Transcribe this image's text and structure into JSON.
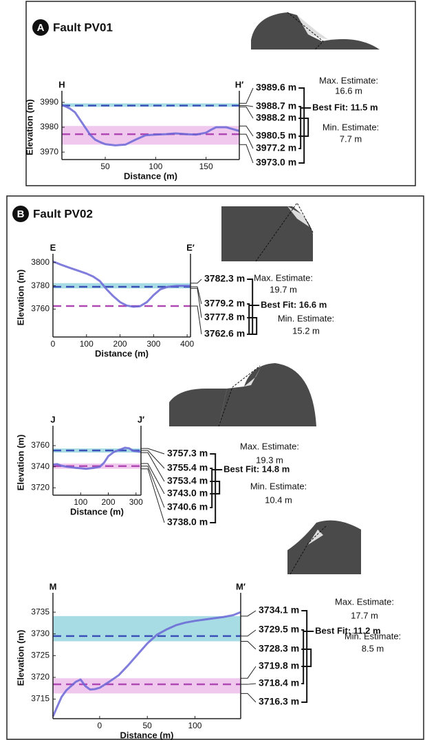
{
  "panels": [
    {
      "letter": "A",
      "title": "Fault PV01"
    },
    {
      "letter": "B",
      "title": "Fault PV02"
    }
  ],
  "chart_data": [
    {
      "type": "line",
      "section": [
        "H",
        "H′"
      ],
      "x_label": "Distance (m)",
      "y_label": "Elevation (m)",
      "color": "#6a66d6",
      "x": [
        7,
        10,
        15,
        20,
        25,
        30,
        35,
        40,
        45,
        50,
        60,
        70,
        80,
        90,
        100,
        110,
        120,
        130,
        140,
        150,
        155,
        160,
        170,
        177,
        183
      ],
      "values": [
        3989,
        3988.5,
        3987.5,
        3986,
        3983,
        3980,
        3977,
        3975,
        3974,
        3973.2,
        3972.7,
        3973,
        3975,
        3976.8,
        3977,
        3977.2,
        3977.5,
        3977.2,
        3977,
        3977.8,
        3979,
        3980,
        3980,
        3979.2,
        3978.5
      ],
      "xlim": [
        7,
        183
      ],
      "xticks": [
        50,
        100,
        150
      ],
      "ylim": [
        3967,
        3993
      ],
      "yticks": [
        3970,
        3980,
        3990
      ],
      "upper_levels": [
        {
          "value": 3989.6,
          "label": "3989.6 m"
        },
        {
          "value": 3988.7,
          "label": "3988.7 m"
        },
        {
          "value": 3988.2,
          "label": "3988.2 m"
        }
      ],
      "lower_levels": [
        {
          "value": 3980.5,
          "label": "3980.5 m"
        },
        {
          "value": 3977.2,
          "label": "3977.2 m"
        },
        {
          "value": 3973.0,
          "label": "3973.0 m"
        }
      ],
      "estimates": {
        "max": [
          "Max. Estimate:",
          "16.6 m"
        ],
        "best": "Best Fit: 11.5 m",
        "min": [
          "Min. Estimate:",
          "7.7 m"
        ]
      }
    },
    {
      "type": "line",
      "section": [
        "E",
        "E′"
      ],
      "x_label": "Distance (m)",
      "y_label": "Elevation (m)",
      "color": "#6a66d6",
      "x": [
        0,
        25,
        50,
        75,
        100,
        120,
        140,
        160,
        180,
        200,
        220,
        240,
        260,
        280,
        300,
        320,
        340,
        370,
        410
      ],
      "values": [
        3801,
        3798,
        3795.5,
        3793,
        3790.5,
        3788,
        3784,
        3777,
        3771,
        3766,
        3763,
        3762,
        3762.5,
        3766,
        3772,
        3777,
        3779,
        3780,
        3780
      ],
      "xlim": [
        0,
        410
      ],
      "xticks": [
        0,
        100,
        200,
        300,
        400
      ],
      "ylim": [
        3736,
        3804
      ],
      "yticks": [
        3760,
        3780,
        3800
      ],
      "upper_levels": [
        {
          "value": 3782.3,
          "label": "3782.3 m"
        },
        {
          "value": 3779.2,
          "label": "3779.2 m"
        },
        {
          "value": 3777.8,
          "label": "3777.8 m"
        }
      ],
      "lower_levels": [
        {
          "value": 3762.6,
          "label": "3762.6 m"
        }
      ],
      "estimates": {
        "max": [
          "Max. Estimate:",
          "19.7 m"
        ],
        "best": "Best Fit: 16.6 m",
        "min": [
          "Min. Estimate:",
          "15.2 m"
        ]
      }
    },
    {
      "type": "line",
      "section": [
        "J",
        "J′"
      ],
      "x_label": "Distance (m)",
      "y_label": "Elevation (m)",
      "color": "#6a66d6",
      "x": [
        0,
        15,
        30,
        50,
        80,
        100,
        120,
        150,
        170,
        185,
        200,
        220,
        240,
        260,
        275,
        290,
        305,
        318
      ],
      "values": [
        3742,
        3742.5,
        3741,
        3740,
        3739,
        3738.5,
        3738,
        3739,
        3740,
        3744,
        3750,
        3754,
        3756,
        3758,
        3757.5,
        3755,
        3754.5,
        3754
      ],
      "xlim": [
        0,
        318
      ],
      "xticks": [
        100,
        200,
        300
      ],
      "ylim": [
        3713,
        3775
      ],
      "yticks": [
        3720,
        3740,
        3760
      ],
      "upper_levels": [
        {
          "value": 3757.3,
          "label": "3757.3 m"
        },
        {
          "value": 3755.4,
          "label": "3755.4 m"
        },
        {
          "value": 3753.4,
          "label": "3753.4 m"
        }
      ],
      "lower_levels": [
        {
          "value": 3743.0,
          "label": "3743.0 m"
        },
        {
          "value": 3740.6,
          "label": "3740.6 m"
        },
        {
          "value": 3738.0,
          "label": "3738.0 m"
        }
      ],
      "estimates": {
        "max": [
          "Max. Estimate:",
          "19.3 m"
        ],
        "best": "Best Fit: 14.8 m",
        "min": [
          "Min. Estimate:",
          "10.4 m"
        ]
      }
    },
    {
      "type": "line",
      "section": [
        "M",
        "M′"
      ],
      "x_label": "Distance (m)",
      "y_label": "Elevation (m)",
      "color": "#6a66d6",
      "x": [
        -49,
        -45,
        -40,
        -35,
        -30,
        -25,
        -20,
        -15,
        -10,
        -5,
        0,
        10,
        20,
        30,
        40,
        50,
        60,
        70,
        80,
        90,
        100,
        110,
        120,
        130,
        140,
        148
      ],
      "values": [
        3711,
        3713,
        3715.5,
        3717,
        3718,
        3719,
        3719.5,
        3718,
        3717.2,
        3717.3,
        3717.6,
        3719,
        3720.5,
        3722.8,
        3725.3,
        3727.8,
        3729.8,
        3731,
        3732,
        3732.6,
        3733,
        3733.3,
        3733.6,
        3733.9,
        3734.3,
        3735
      ],
      "xlim": [
        -49,
        148
      ],
      "xticks": [
        0,
        50,
        100
      ],
      "ylim": [
        3710.5,
        3738.5
      ],
      "yticks": [
        3715,
        3720,
        3725,
        3730,
        3735
      ],
      "upper_levels": [
        {
          "value": 3734.1,
          "label": "3734.1 m"
        },
        {
          "value": 3729.5,
          "label": "3729.5 m"
        },
        {
          "value": 3728.3,
          "label": "3728.3 m"
        }
      ],
      "lower_levels": [
        {
          "value": 3719.8,
          "label": "3719.8 m"
        },
        {
          "value": 3718.4,
          "label": "3718.4 m"
        },
        {
          "value": 3716.3,
          "label": "3716.3 m"
        }
      ],
      "estimates": {
        "max": [
          "Max. Estimate:",
          "17.7 m"
        ],
        "best": "Best Fit: 11.2 m",
        "min": [
          "Min. Estimate:",
          "8.5 m"
        ]
      }
    }
  ]
}
